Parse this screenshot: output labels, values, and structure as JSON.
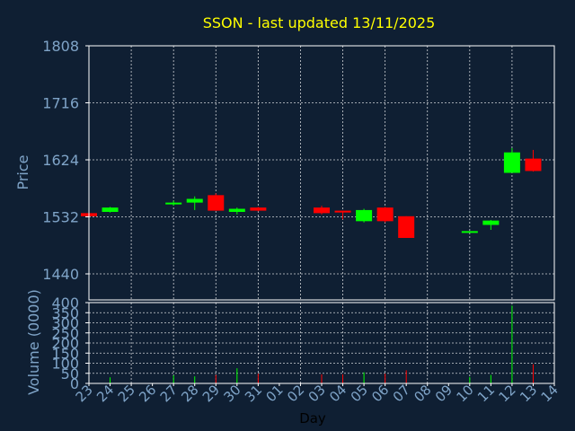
{
  "colors": {
    "background": "#0f1f33",
    "title": "#ffff00",
    "axis_text": "#7fa4c8",
    "grid": "#ffffff",
    "up": "#00ff00",
    "down": "#ff0000"
  },
  "chart_data": [
    {
      "type": "candlestick",
      "title": "SSON - last updated 13/11/2025",
      "ylabel": "Price",
      "ylim": [
        1398,
        1808
      ],
      "yticks": [
        1440,
        1532,
        1624,
        1716,
        1808
      ],
      "ytick_labels": [
        "1440",
        "1532",
        "1624",
        "1716",
        "1808"
      ],
      "grid": true,
      "categories": [
        "23",
        "24",
        "25",
        "26",
        "27",
        "28",
        "29",
        "30",
        "31",
        "01",
        "02",
        "03",
        "04",
        "05",
        "06",
        "07",
        "08",
        "09",
        "10",
        "11",
        "12",
        "13",
        "14"
      ],
      "candles": [
        {
          "x": "23",
          "open": 1538,
          "close": 1533,
          "high": 1538,
          "low": 1533
        },
        {
          "x": "24",
          "open": 1540,
          "close": 1547,
          "high": 1548,
          "low": 1539
        },
        {
          "x": "27",
          "open": 1553,
          "close": 1555,
          "high": 1558,
          "low": 1550
        },
        {
          "x": "28",
          "open": 1555,
          "close": 1561,
          "high": 1565,
          "low": 1543
        },
        {
          "x": "29",
          "open": 1567,
          "close": 1542,
          "high": 1570,
          "low": 1542
        },
        {
          "x": "30",
          "open": 1540,
          "close": 1545,
          "high": 1547,
          "low": 1536
        },
        {
          "x": "31",
          "open": 1547,
          "close": 1542,
          "high": 1548,
          "low": 1541
        },
        {
          "x": "03",
          "open": 1547,
          "close": 1538,
          "high": 1550,
          "low": 1536
        },
        {
          "x": "04",
          "open": 1542,
          "close": 1539,
          "high": 1542,
          "low": 1528
        },
        {
          "x": "05",
          "open": 1525,
          "close": 1543,
          "high": 1545,
          "low": 1523
        },
        {
          "x": "06",
          "open": 1547,
          "close": 1525,
          "high": 1548,
          "low": 1523
        },
        {
          "x": "07",
          "open": 1533,
          "close": 1498,
          "high": 1533,
          "low": 1498
        },
        {
          "x": "10",
          "open": 1507,
          "close": 1509,
          "high": 1509,
          "low": 1507
        },
        {
          "x": "11",
          "open": 1519,
          "close": 1526,
          "high": 1527,
          "low": 1511
        },
        {
          "x": "12",
          "open": 1603,
          "close": 1636,
          "high": 1643,
          "low": 1603
        },
        {
          "x": "13",
          "open": 1626,
          "close": 1606,
          "high": 1640,
          "low": 1605
        }
      ]
    },
    {
      "type": "bar",
      "ylabel": "Volume (0000)",
      "xlabel": "Day",
      "ylim": [
        0,
        400
      ],
      "yticks": [
        0,
        50,
        100,
        150,
        200,
        250,
        300,
        350,
        400
      ],
      "ytick_labels": [
        "0",
        "50",
        "100",
        "150",
        "200",
        "250",
        "300",
        "350",
        "400"
      ],
      "categories": [
        "23",
        "24",
        "25",
        "26",
        "27",
        "28",
        "29",
        "30",
        "31",
        "01",
        "02",
        "03",
        "04",
        "05",
        "06",
        "07",
        "08",
        "09",
        "10",
        "11",
        "12",
        "13",
        "14"
      ],
      "values": [
        {
          "x": "24",
          "value": 30,
          "direction": "up"
        },
        {
          "x": "27",
          "value": 40,
          "direction": "up"
        },
        {
          "x": "28",
          "value": 35,
          "direction": "up"
        },
        {
          "x": "29",
          "value": 42,
          "direction": "down"
        },
        {
          "x": "30",
          "value": 75,
          "direction": "up"
        },
        {
          "x": "31",
          "value": 48,
          "direction": "down"
        },
        {
          "x": "03",
          "value": 45,
          "direction": "down"
        },
        {
          "x": "04",
          "value": 45,
          "direction": "down"
        },
        {
          "x": "05",
          "value": 55,
          "direction": "up"
        },
        {
          "x": "06",
          "value": 48,
          "direction": "down"
        },
        {
          "x": "07",
          "value": 65,
          "direction": "down"
        },
        {
          "x": "10",
          "value": 32,
          "direction": "up"
        },
        {
          "x": "11",
          "value": 42,
          "direction": "up"
        },
        {
          "x": "12",
          "value": 385,
          "direction": "up"
        },
        {
          "x": "13",
          "value": 95,
          "direction": "down"
        }
      ]
    }
  ]
}
